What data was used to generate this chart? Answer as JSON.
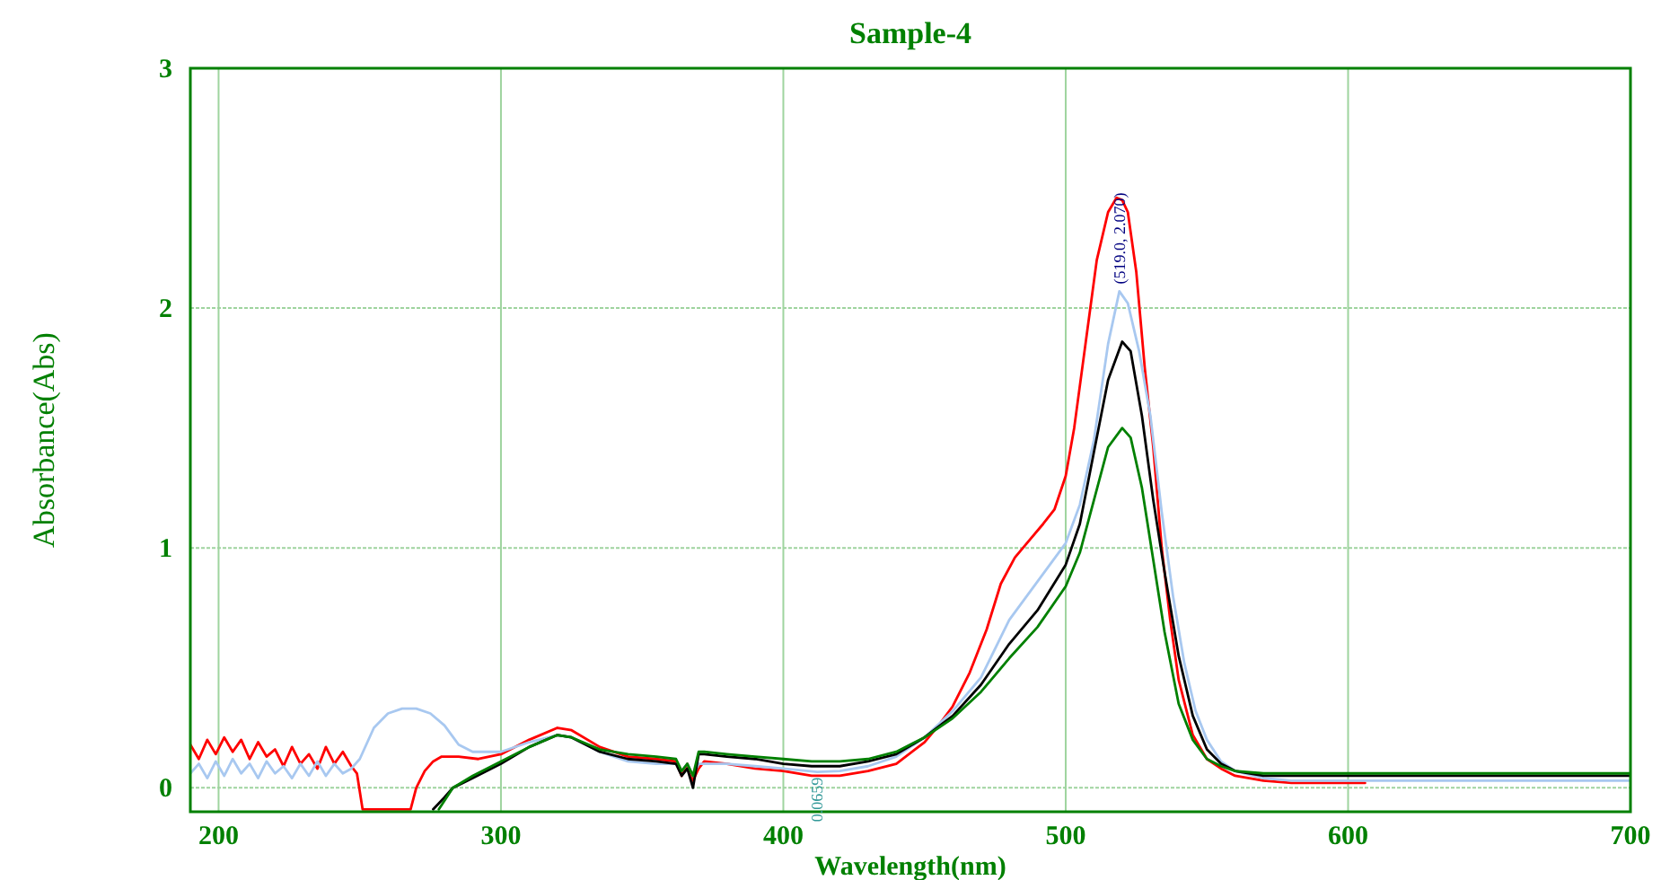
{
  "chart_data": {
    "type": "line",
    "title": "Sample-4",
    "xlabel": "Wavelength(nm)",
    "ylabel": "Absorbance(Abs)",
    "xlim": [
      190,
      700
    ],
    "ylim": [
      -0.1,
      3
    ],
    "xticks": [
      200,
      300,
      400,
      500,
      600,
      700
    ],
    "yticks": [
      0,
      1,
      2,
      3
    ],
    "grid": true,
    "line_style": "solid",
    "marker": "none",
    "annotations": [
      {
        "text": "(519.0, 2.070)",
        "x": 519,
        "y": 2.07
      },
      {
        "text": "0.0659",
        "x": 412,
        "y": 0.0659
      }
    ],
    "series": [
      {
        "color": "#ff0000",
        "x": [
          190,
          193,
          196,
          199,
          202,
          205,
          208,
          211,
          214,
          217,
          220,
          223,
          226,
          229,
          232,
          235,
          238,
          241,
          244,
          247,
          249,
          251,
          268,
          270,
          273,
          276,
          279,
          285,
          292,
          300,
          310,
          320,
          325,
          335,
          345,
          355,
          362,
          364,
          366,
          368,
          370,
          372,
          380,
          390,
          400,
          410,
          420,
          430,
          440,
          450,
          455,
          460,
          466,
          472,
          477,
          482,
          487,
          492,
          496,
          500,
          503,
          507,
          511,
          515,
          518,
          520,
          522,
          525,
          528,
          531,
          534,
          537,
          540,
          545,
          550,
          555,
          560,
          570,
          580,
          590,
          600,
          606
        ],
        "values": [
          0.18,
          0.12,
          0.2,
          0.14,
          0.21,
          0.15,
          0.2,
          0.12,
          0.19,
          0.13,
          0.16,
          0.09,
          0.17,
          0.1,
          0.14,
          0.08,
          0.17,
          0.1,
          0.15,
          0.09,
          0.06,
          -0.09,
          -0.09,
          0.0,
          0.07,
          0.11,
          0.13,
          0.13,
          0.12,
          0.14,
          0.2,
          0.25,
          0.24,
          0.17,
          0.13,
          0.12,
          0.11,
          0.05,
          0.1,
          0.03,
          0.08,
          0.11,
          0.1,
          0.08,
          0.07,
          0.05,
          0.05,
          0.07,
          0.1,
          0.19,
          0.26,
          0.34,
          0.48,
          0.66,
          0.85,
          0.96,
          1.03,
          1.1,
          1.16,
          1.3,
          1.5,
          1.85,
          2.2,
          2.4,
          2.46,
          2.45,
          2.4,
          2.15,
          1.75,
          1.42,
          1.0,
          0.7,
          0.45,
          0.22,
          0.12,
          0.08,
          0.05,
          0.03,
          0.02,
          0.02,
          0.02,
          0.02
        ]
      },
      {
        "color": "#a8c8f0",
        "x": [
          190,
          193,
          196,
          199,
          202,
          205,
          208,
          211,
          214,
          217,
          220,
          223,
          226,
          229,
          232,
          235,
          238,
          241,
          244,
          247,
          250,
          255,
          260,
          265,
          270,
          275,
          280,
          285,
          290,
          295,
          300,
          310,
          320,
          325,
          335,
          345,
          355,
          362,
          364,
          366,
          368,
          370,
          372,
          380,
          390,
          400,
          412,
          420,
          430,
          440,
          450,
          460,
          470,
          480,
          490,
          500,
          505,
          510,
          515,
          519,
          522,
          526,
          530,
          534,
          538,
          542,
          546,
          550,
          555,
          560,
          570,
          580,
          600,
          650,
          700
        ],
        "values": [
          0.06,
          0.1,
          0.04,
          0.11,
          0.05,
          0.12,
          0.06,
          0.1,
          0.04,
          0.11,
          0.06,
          0.09,
          0.04,
          0.1,
          0.05,
          0.11,
          0.05,
          0.1,
          0.06,
          0.08,
          0.12,
          0.25,
          0.31,
          0.33,
          0.33,
          0.31,
          0.26,
          0.18,
          0.15,
          0.15,
          0.15,
          0.19,
          0.22,
          0.21,
          0.15,
          0.11,
          0.1,
          0.1,
          0.07,
          0.1,
          0.05,
          0.1,
          0.1,
          0.1,
          0.09,
          0.08,
          0.066,
          0.07,
          0.09,
          0.13,
          0.21,
          0.32,
          0.46,
          0.7,
          0.86,
          1.02,
          1.18,
          1.45,
          1.85,
          2.07,
          2.02,
          1.82,
          1.55,
          1.15,
          0.8,
          0.52,
          0.32,
          0.2,
          0.11,
          0.07,
          0.04,
          0.03,
          0.03,
          0.03,
          0.03
        ]
      },
      {
        "color": "#000000",
        "x": [
          276,
          280,
          283,
          290,
          300,
          310,
          320,
          325,
          335,
          345,
          355,
          362,
          364,
          366,
          368,
          370,
          372,
          380,
          390,
          400,
          410,
          420,
          430,
          440,
          450,
          460,
          470,
          480,
          490,
          500,
          505,
          510,
          515,
          520,
          523,
          527,
          531,
          535,
          540,
          545,
          550,
          555,
          560,
          570,
          580,
          600,
          650,
          700
        ],
        "values": [
          -0.09,
          -0.04,
          0.0,
          0.04,
          0.1,
          0.17,
          0.22,
          0.21,
          0.15,
          0.12,
          0.11,
          0.1,
          0.05,
          0.08,
          0.0,
          0.14,
          0.14,
          0.13,
          0.12,
          0.1,
          0.09,
          0.09,
          0.11,
          0.14,
          0.21,
          0.3,
          0.43,
          0.6,
          0.74,
          0.93,
          1.1,
          1.4,
          1.7,
          1.86,
          1.82,
          1.55,
          1.2,
          0.9,
          0.55,
          0.3,
          0.16,
          0.1,
          0.07,
          0.05,
          0.05,
          0.05,
          0.05,
          0.05
        ]
      },
      {
        "color": "#008000",
        "x": [
          278,
          283,
          290,
          300,
          310,
          320,
          325,
          335,
          345,
          355,
          362,
          364,
          366,
          368,
          370,
          372,
          380,
          390,
          400,
          410,
          420,
          430,
          440,
          450,
          460,
          470,
          480,
          490,
          500,
          505,
          510,
          515,
          520,
          523,
          527,
          531,
          535,
          540,
          545,
          550,
          555,
          560,
          570,
          580,
          600,
          650,
          700
        ],
        "values": [
          -0.09,
          0.0,
          0.05,
          0.11,
          0.17,
          0.22,
          0.21,
          0.16,
          0.14,
          0.13,
          0.12,
          0.07,
          0.1,
          0.05,
          0.15,
          0.15,
          0.14,
          0.13,
          0.12,
          0.11,
          0.11,
          0.12,
          0.15,
          0.21,
          0.29,
          0.4,
          0.54,
          0.67,
          0.84,
          0.98,
          1.2,
          1.42,
          1.5,
          1.46,
          1.25,
          0.95,
          0.65,
          0.35,
          0.2,
          0.12,
          0.09,
          0.07,
          0.06,
          0.06,
          0.06,
          0.06,
          0.06
        ]
      }
    ]
  }
}
